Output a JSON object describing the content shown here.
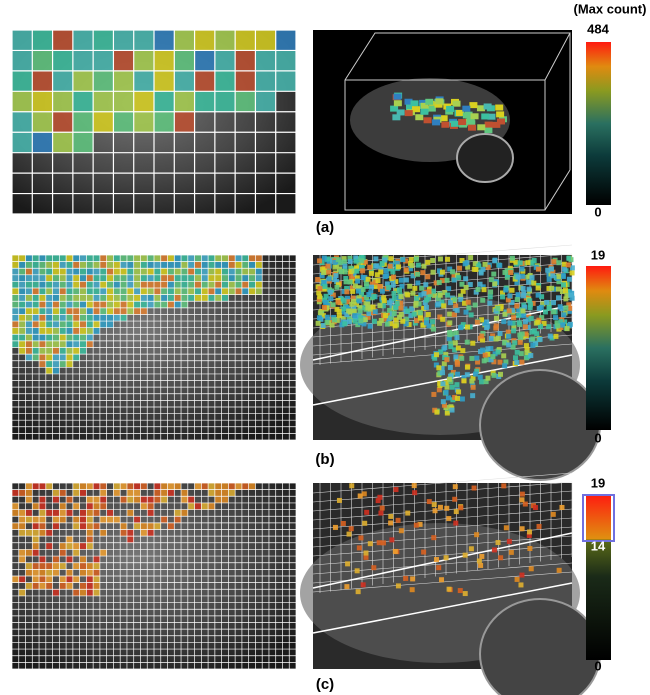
{
  "colorbar_title": "(Max count)",
  "panels": [
    {
      "label": "(a)",
      "colorbar": {
        "max": "484",
        "min": "0"
      }
    },
    {
      "label": "(b)",
      "colorbar": {
        "max": "19",
        "min": "0"
      }
    },
    {
      "label": "(c)",
      "colorbar": {
        "max": "19",
        "threshold": "14",
        "min": "0"
      }
    }
  ]
}
